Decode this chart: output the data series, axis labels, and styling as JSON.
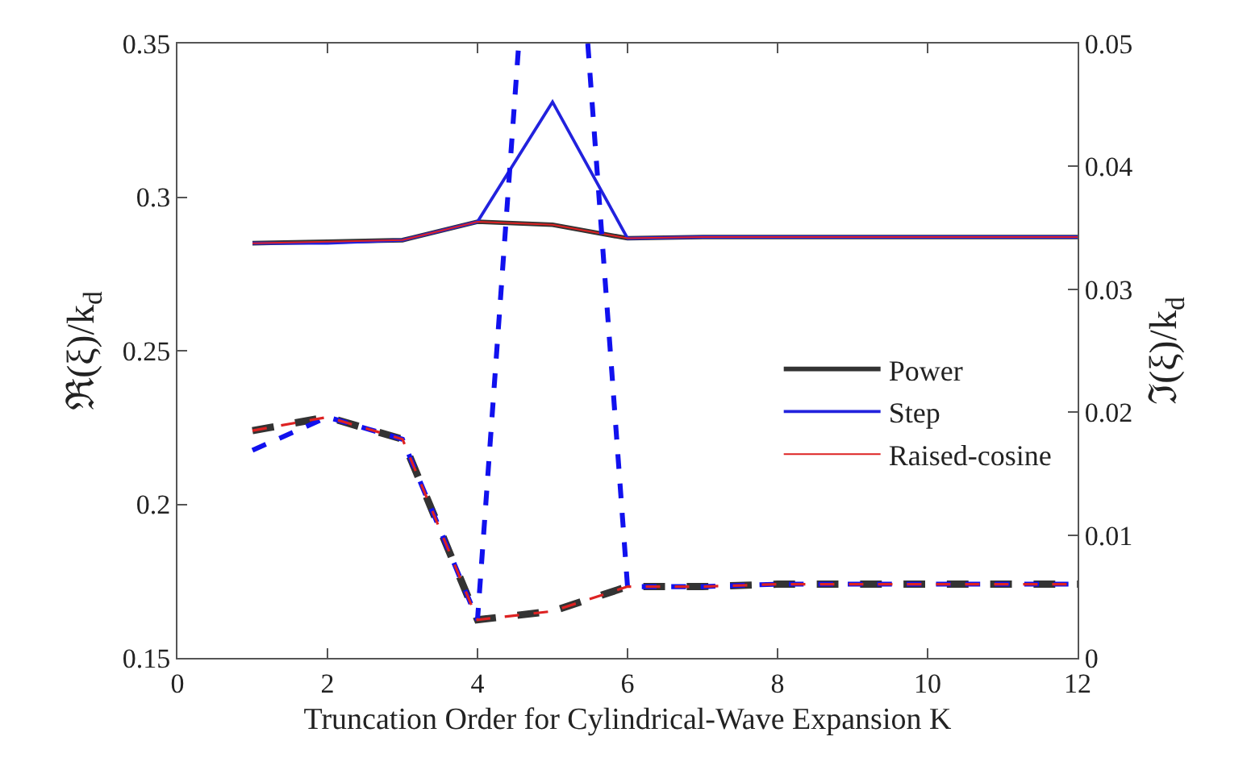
{
  "chart_data": {
    "type": "line",
    "xlabel": "Truncation Order for Cylindrical-Wave Expansion K",
    "ylabel": "ℜ(ξ)/k$_{d}$",
    "y2label": "ℑ(ξ)/k$_{d}$",
    "x": [
      1,
      2,
      3,
      4,
      5,
      6,
      7,
      8,
      9,
      10,
      11,
      12
    ],
    "xlim": [
      0,
      12
    ],
    "xticks": [
      0,
      2,
      4,
      6,
      8,
      10,
      12
    ],
    "ylim": [
      0.15,
      0.35
    ],
    "yticks": [
      0.15,
      0.2,
      0.25,
      0.3,
      0.35
    ],
    "y2lim": [
      0,
      0.05
    ],
    "y2ticks": [
      0,
      0.01,
      0.02,
      0.03,
      0.04,
      0.05
    ],
    "legend": "right",
    "marker": "none",
    "series": [
      {
        "name": "Power",
        "color": "#333333",
        "line_style": "solid",
        "values": [
          0.285,
          0.2855,
          0.286,
          0.292,
          0.291,
          0.2866,
          0.287,
          0.287,
          0.287,
          0.287,
          0.287,
          0.287
        ]
      },
      {
        "name": "Step",
        "color": "#2222dd",
        "line_style": "solid",
        "values": [
          0.285,
          0.285,
          0.286,
          0.292,
          0.331,
          0.2866,
          0.287,
          0.287,
          0.287,
          0.287,
          0.287,
          0.287
        ]
      },
      {
        "name": "Raised-cosine",
        "color": "#dd2222",
        "line_style": "solid",
        "values": [
          0.285,
          0.2855,
          0.286,
          0.292,
          0.291,
          0.2866,
          0.287,
          0.287,
          0.287,
          0.287,
          0.287,
          0.287
        ]
      },
      {
        "color": "#333333",
        "line_style": "dashed",
        "axis": "y2",
        "values": [
          0.0185,
          0.0196,
          0.0178,
          0.0031,
          0.0038,
          0.0058,
          0.0058,
          0.006,
          0.006,
          0.006,
          0.006,
          0.006
        ]
      },
      {
        "color": "#1111ee",
        "line_style": "dashed",
        "axis": "y2",
        "x": [
          1,
          2,
          3,
          4,
          4.55,
          5,
          5.47,
          6,
          7,
          8,
          9,
          10,
          11,
          12
        ],
        "values": [
          0.0169,
          0.0196,
          0.0178,
          0.0031,
          0.05,
          null,
          0.05,
          0.0058,
          0.0058,
          0.006,
          0.006,
          0.006,
          0.006,
          0.006
        ]
      },
      {
        "color": "#dd2222",
        "line_style": "dashed",
        "axis": "y2",
        "values": [
          0.0185,
          0.0196,
          0.0178,
          0.0031,
          0.0038,
          0.0058,
          0.0058,
          0.006,
          0.006,
          0.006,
          0.006,
          0.006
        ]
      }
    ]
  }
}
